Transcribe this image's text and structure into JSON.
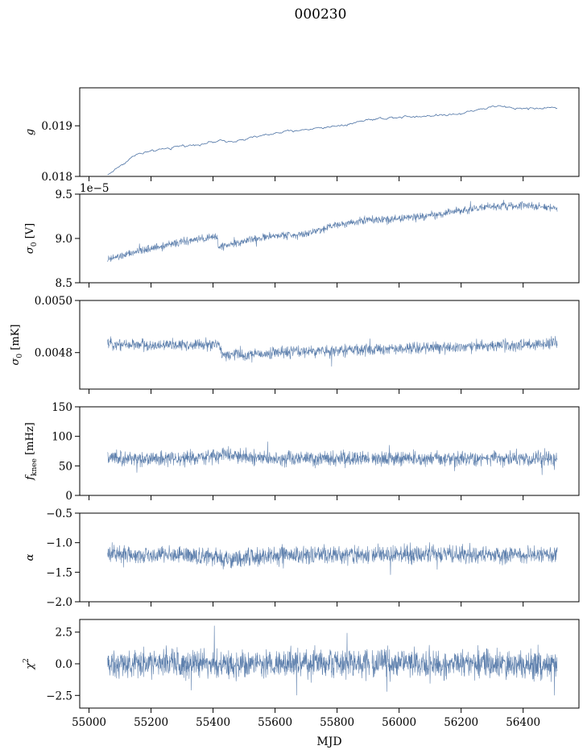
{
  "figure": {
    "title": "000230",
    "xlabel": "MJD"
  },
  "colors": {
    "series": "#4c72a4",
    "axis": "#000000",
    "background": "#ffffff"
  },
  "chart_data": [
    {
      "type": "line",
      "id": "g",
      "ylabel": "g",
      "xlim": [
        54970,
        56580
      ],
      "ylim": [
        0.018,
        0.01975
      ],
      "yticks": [
        0.018,
        0.019
      ],
      "ytick_labels": [
        "0.018",
        "0.019"
      ],
      "offset_text": "",
      "show_xticklabels": false,
      "x_start": 55060,
      "x_end": 56510,
      "trend": [
        [
          55060,
          0.01803
        ],
        [
          55150,
          0.01843
        ],
        [
          55300,
          0.0186
        ],
        [
          55400,
          0.01868
        ],
        [
          55500,
          0.01873
        ],
        [
          55600,
          0.01885
        ],
        [
          55700,
          0.01893
        ],
        [
          55800,
          0.019
        ],
        [
          55900,
          0.01912
        ],
        [
          56000,
          0.01918
        ],
        [
          56100,
          0.0192
        ],
        [
          56200,
          0.01925
        ],
        [
          56300,
          0.01938
        ],
        [
          56400,
          0.01935
        ],
        [
          56510,
          0.01935
        ]
      ],
      "noise": 2.5e-05,
      "samples": 420,
      "stroke": 0.8,
      "opacity": 1,
      "gap": null
    },
    {
      "type": "line",
      "id": "sigma0_v",
      "ylabel": "σ0 [V]",
      "xlim": [
        54970,
        56580
      ],
      "ylim": [
        8.5,
        9.5
      ],
      "yticks": [
        8.5,
        9.0,
        9.5
      ],
      "ytick_labels": [
        "8.5",
        "9.0",
        "9.5"
      ],
      "offset_text": "1e−5",
      "show_xticklabels": false,
      "x_start": 55060,
      "x_end": 56510,
      "trend": [
        [
          55060,
          8.76
        ],
        [
          55200,
          8.89
        ],
        [
          55300,
          8.96
        ],
        [
          55415,
          9.02
        ],
        [
          55416,
          8.9
        ],
        [
          55500,
          8.97
        ],
        [
          55600,
          9.03
        ],
        [
          55700,
          9.05
        ],
        [
          55800,
          9.16
        ],
        [
          55900,
          9.21
        ],
        [
          56000,
          9.23
        ],
        [
          56100,
          9.25
        ],
        [
          56200,
          9.32
        ],
        [
          56300,
          9.36
        ],
        [
          56400,
          9.37
        ],
        [
          56510,
          9.34
        ]
      ],
      "noise": 0.035,
      "samples": 1400,
      "stroke": 0.6,
      "opacity": 0.9,
      "gap": null
    },
    {
      "type": "line",
      "id": "sigma0_mk",
      "ylabel": "σ0 [mK]",
      "xlim": [
        54970,
        56580
      ],
      "ylim": [
        0.00466,
        0.005
      ],
      "yticks": [
        0.0048,
        0.005
      ],
      "ytick_labels": [
        "0.0048",
        "0.0050"
      ],
      "offset_text": "",
      "show_xticklabels": false,
      "x_start": 55060,
      "x_end": 56510,
      "trend": [
        [
          55060,
          0.004835
        ],
        [
          55200,
          0.004828
        ],
        [
          55350,
          0.00483
        ],
        [
          55420,
          0.00483
        ],
        [
          55430,
          0.004795
        ],
        [
          55500,
          0.00479
        ],
        [
          55600,
          0.0048
        ],
        [
          55800,
          0.004808
        ],
        [
          56000,
          0.004815
        ],
        [
          56200,
          0.004822
        ],
        [
          56400,
          0.00483
        ],
        [
          56510,
          0.004835
        ]
      ],
      "noise": 1.8e-05,
      "samples": 1400,
      "stroke": 0.6,
      "opacity": 0.9,
      "gap": null
    },
    {
      "type": "line",
      "id": "fknee",
      "ylabel": "fknee [mHz]",
      "xlim": [
        54970,
        56580
      ],
      "ylim": [
        0,
        150
      ],
      "yticks": [
        0,
        50,
        100,
        150
      ],
      "ytick_labels": [
        "0",
        "50",
        "100",
        "150"
      ],
      "offset_text": "",
      "show_xticklabels": false,
      "x_start": 55060,
      "x_end": 56510,
      "trend": [
        [
          55060,
          62
        ],
        [
          55300,
          62
        ],
        [
          55450,
          68
        ],
        [
          55600,
          62
        ],
        [
          55900,
          62
        ],
        [
          56100,
          62
        ],
        [
          56510,
          62
        ]
      ],
      "noise": 10,
      "samples": 1600,
      "stroke": 0.6,
      "opacity": 0.9,
      "gap": [
        55905,
        55912
      ]
    },
    {
      "type": "line",
      "id": "alpha",
      "ylabel": "α",
      "xlim": [
        54970,
        56580
      ],
      "ylim": [
        -2.0,
        -0.5
      ],
      "yticks": [
        -2.0,
        -1.5,
        -1.0,
        -0.5
      ],
      "ytick_labels": [
        "−2.0",
        "−1.5",
        "−1.0",
        "−0.5"
      ],
      "offset_text": "",
      "show_xticklabels": false,
      "x_start": 55060,
      "x_end": 56510,
      "trend": [
        [
          55060,
          -1.2
        ],
        [
          55300,
          -1.2
        ],
        [
          55450,
          -1.28
        ],
        [
          55600,
          -1.22
        ],
        [
          55900,
          -1.2
        ],
        [
          56510,
          -1.2
        ]
      ],
      "noise": 0.12,
      "samples": 1600,
      "stroke": 0.6,
      "opacity": 0.9,
      "gap": [
        55905,
        55912
      ]
    },
    {
      "type": "line",
      "id": "chi2",
      "ylabel": "χ2",
      "xlim": [
        54970,
        56580
      ],
      "ylim": [
        -3.5,
        3.5
      ],
      "yticks": [
        -2.5,
        0.0,
        2.5
      ],
      "ytick_labels": [
        "−2.5",
        "0.0",
        "2.5"
      ],
      "offset_text": "",
      "show_xticklabels": true,
      "xticks": [
        55000,
        55200,
        55400,
        55600,
        55800,
        56000,
        56200,
        56400
      ],
      "xtick_labels": [
        "55000",
        "55200",
        "55400",
        "55600",
        "55800",
        "56000",
        "56200",
        "56400"
      ],
      "x_start": 55060,
      "x_end": 56510,
      "trend": [
        [
          55060,
          0.0
        ],
        [
          56510,
          0.0
        ]
      ],
      "noise": 0.9,
      "samples": 1800,
      "stroke": 0.6,
      "opacity": 0.9,
      "gap": [
        55905,
        55912
      ]
    }
  ]
}
